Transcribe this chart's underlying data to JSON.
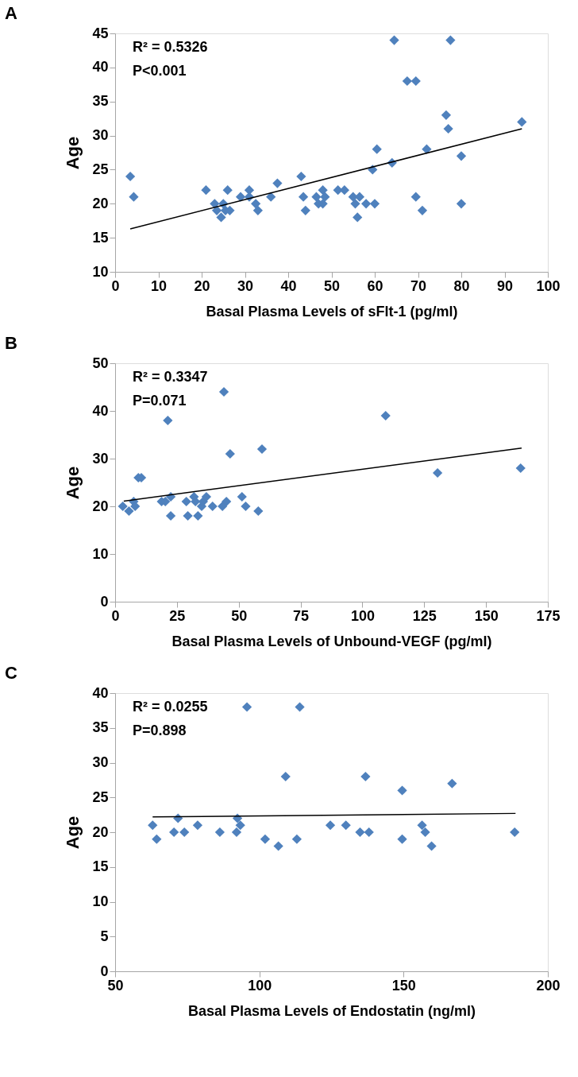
{
  "chart_data": [
    {
      "type": "scatter",
      "title": "A",
      "xlabel": "Basal Plasma Levels of sFlt-1 (pg/ml)",
      "ylabel": "Age",
      "annotations": [
        "R² = 0.5326",
        "P<0.001"
      ],
      "xlim": [
        0,
        100
      ],
      "xticks": [
        0,
        10,
        20,
        30,
        40,
        50,
        60,
        70,
        80,
        90,
        100
      ],
      "ylim": [
        10,
        45
      ],
      "yticks": [
        10,
        15,
        20,
        25,
        30,
        35,
        40,
        45
      ],
      "grid": false,
      "series": [
        {
          "marker": "diamond",
          "color": "#4f81bd",
          "x": [
            3.5,
            4.3,
            21,
            23,
            23.5,
            24.5,
            25,
            25.5,
            26,
            26.5,
            29,
            31,
            31,
            32.5,
            33,
            36,
            37.5,
            43,
            43.5,
            44,
            46.5,
            47,
            48,
            48,
            48.5,
            51.5,
            53,
            55,
            55.5,
            56,
            56.5,
            58,
            60,
            59.5,
            60.5,
            64,
            64.5,
            67.5,
            69.5,
            69.5,
            71,
            72,
            76.5,
            77,
            77.5,
            80,
            80,
            94
          ],
          "values": [
            24,
            21,
            22,
            20,
            19,
            18,
            20,
            19,
            22,
            19,
            21,
            22,
            21,
            20,
            19,
            21,
            23,
            24,
            21,
            19,
            21,
            20,
            22,
            20,
            21,
            22,
            22,
            21,
            20,
            18,
            21,
            20,
            20,
            25,
            28,
            26,
            44,
            38,
            38,
            21,
            19,
            28,
            33,
            31,
            44,
            27,
            20,
            32
          ]
        },
        {
          "type": "line",
          "color": "#000000",
          "x": [
            3.5,
            94
          ],
          "values": [
            16.3,
            31
          ]
        }
      ]
    },
    {
      "type": "scatter",
      "title": "B",
      "xlabel": "Basal Plasma Levels of Unbound-VEGF (pg/ml)",
      "ylabel": "Age",
      "annotations": [
        "R² = 0.3347",
        "P=0.071"
      ],
      "xlim": [
        0,
        175
      ],
      "xticks": [
        0,
        25,
        50,
        75,
        100,
        125,
        150,
        175
      ],
      "ylim": [
        0,
        50
      ],
      "yticks": [
        0,
        10,
        20,
        30,
        40,
        50
      ],
      "grid": false,
      "series": [
        {
          "marker": "diamond",
          "color": "#4f81bd",
          "x": [
            3.1,
            5.6,
            7.5,
            8.1,
            9.4,
            10.6,
            18.8,
            20.3,
            21.3,
            22.5,
            22.5,
            28.8,
            29.4,
            31.9,
            32.5,
            33.5,
            35,
            35.6,
            36.9,
            39.4,
            43.4,
            44,
            45,
            46.5,
            51.3,
            52.8,
            57.9,
            59.4,
            109.4,
            130.4,
            164
          ],
          "values": [
            20,
            19,
            21,
            20,
            26,
            26,
            21,
            21,
            38,
            22,
            18,
            21,
            18,
            22,
            21,
            18,
            20,
            21,
            22,
            20,
            20,
            44,
            21,
            31,
            22,
            20,
            19,
            32,
            39,
            27,
            28
          ]
        },
        {
          "type": "line",
          "color": "#000000",
          "x": [
            3.5,
            164.4
          ],
          "values": [
            21.1,
            32.2
          ]
        }
      ]
    },
    {
      "type": "scatter",
      "title": "C",
      "xlabel": "Basal  Plasma Levels of  Endostatin (ng/ml)",
      "ylabel": "Age",
      "annotations": [
        "R² = 0.0255",
        "P=0.898"
      ],
      "xlim": [
        50,
        200
      ],
      "xticks": [
        50,
        100,
        150,
        200
      ],
      "ylim": [
        0,
        40
      ],
      "yticks": [
        0,
        5,
        10,
        15,
        20,
        25,
        30,
        35,
        40
      ],
      "grid": false,
      "series": [
        {
          "marker": "diamond",
          "color": "#4f81bd",
          "x": [
            63,
            64.4,
            70.4,
            71.8,
            74,
            78.6,
            86.3,
            92.1,
            92.4,
            93.4,
            95.7,
            102,
            106.6,
            109.1,
            113,
            114,
            124.6,
            130,
            134.9,
            138,
            136.8,
            149.5,
            149.5,
            156.4,
            157.5,
            159.7,
            166.8,
            188.5
          ],
          "values": [
            21,
            19,
            20,
            22,
            20,
            21,
            20,
            20,
            22,
            21,
            38,
            19,
            18,
            28,
            19,
            38,
            21,
            21,
            20,
            20,
            28,
            19,
            26,
            21,
            20,
            18,
            27,
            20
          ]
        },
        {
          "type": "line",
          "color": "#000000",
          "x": [
            63,
            188.8
          ],
          "values": [
            22.2,
            22.7
          ]
        }
      ]
    }
  ]
}
